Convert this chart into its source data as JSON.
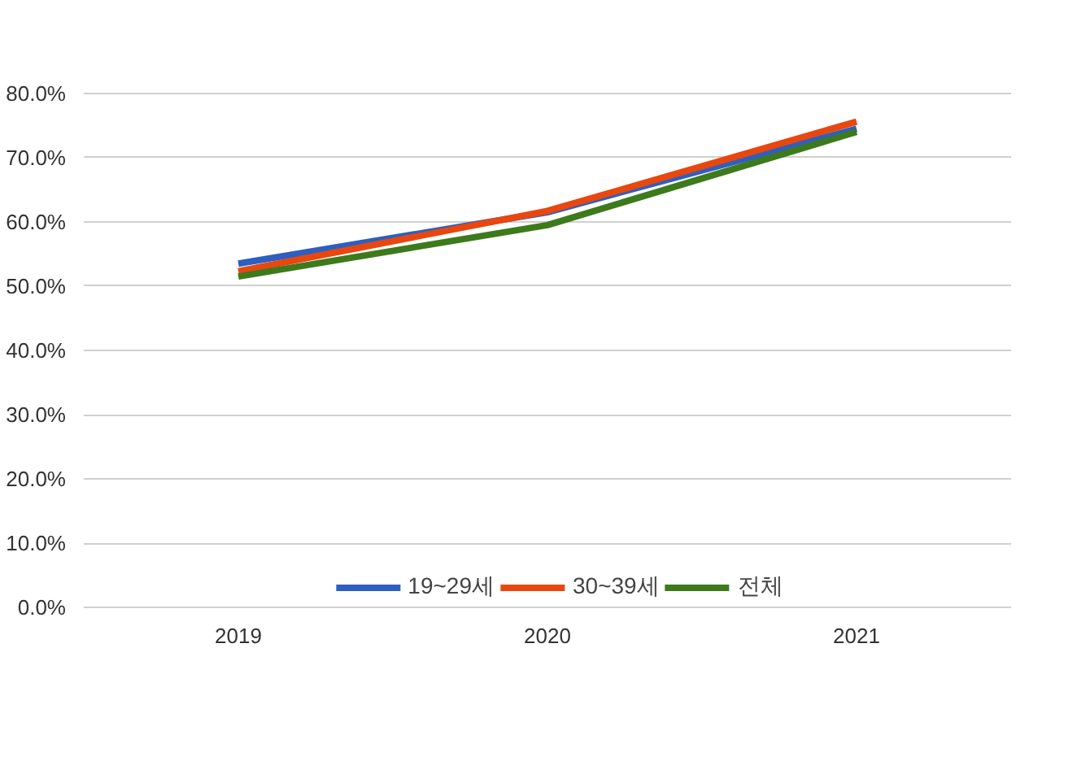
{
  "chart_data": {
    "type": "line",
    "categories": [
      "2019",
      "2020",
      "2021"
    ],
    "series": [
      {
        "name": "19~29세",
        "color": "#2e5fbf",
        "values": [
          53.5,
          61.5,
          74.5
        ]
      },
      {
        "name": "30~39세",
        "color": "#e8470f",
        "values": [
          52.3,
          61.7,
          75.6
        ]
      },
      {
        "name": "전체",
        "color": "#3d7a1c",
        "values": [
          51.5,
          59.5,
          74.0
        ]
      }
    ],
    "ylim": [
      0,
      80
    ],
    "yticks": [
      {
        "value": 0,
        "label": "0.0%"
      },
      {
        "value": 10,
        "label": "10.0%"
      },
      {
        "value": 20,
        "label": "20.0%"
      },
      {
        "value": 30,
        "label": "30.0%"
      },
      {
        "value": 40,
        "label": "40.0%"
      },
      {
        "value": 50,
        "label": "50.0%"
      },
      {
        "value": 60,
        "label": "60.0%"
      },
      {
        "value": 70,
        "label": "70.0%"
      },
      {
        "value": 80,
        "label": "80.0%"
      }
    ],
    "grid": "y",
    "legend": "bottom",
    "marker": "none",
    "line_style": "solid"
  }
}
